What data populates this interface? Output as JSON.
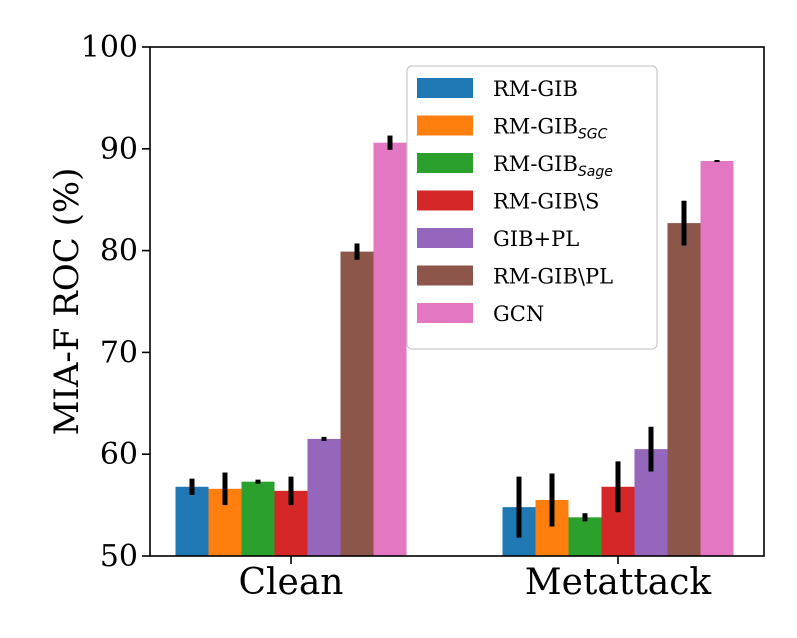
{
  "chart_data": {
    "type": "bar",
    "title": "",
    "xlabel": "",
    "ylabel": "MIA-F ROC (%)",
    "ylim": [
      50,
      100
    ],
    "yticks": [
      50,
      60,
      70,
      80,
      90,
      100
    ],
    "grid": false,
    "legend_position": "upper-right",
    "categories": [
      "Clean",
      "Metattack"
    ],
    "series": [
      {
        "name": "RM-GIB",
        "sub": "",
        "color": "#1f77b4",
        "values": [
          56.8,
          54.8
        ],
        "errors": [
          0.8,
          3.0
        ]
      },
      {
        "name": "RM-GIB",
        "sub": "SGC",
        "color": "#ff7f0e",
        "values": [
          56.6,
          55.5
        ],
        "errors": [
          1.6,
          2.6
        ]
      },
      {
        "name": "RM-GIB",
        "sub": "Sage",
        "color": "#2ca02c",
        "values": [
          57.3,
          53.8
        ],
        "errors": [
          0.2,
          0.4
        ]
      },
      {
        "name": "RM-GIB\\S",
        "sub": "",
        "color": "#d62728",
        "values": [
          56.4,
          56.8
        ],
        "errors": [
          1.4,
          2.5
        ]
      },
      {
        "name": "GIB+PL",
        "sub": "",
        "color": "#9467bd",
        "values": [
          61.5,
          60.5
        ],
        "errors": [
          0.2,
          2.2
        ]
      },
      {
        "name": "RM-GIB\\PL",
        "sub": "",
        "color": "#8c564b",
        "values": [
          79.9,
          82.7
        ],
        "errors": [
          0.8,
          2.2
        ]
      },
      {
        "name": "GCN",
        "sub": "",
        "color": "#e377c2",
        "values": [
          90.6,
          88.8
        ],
        "errors": [
          0.7,
          0.1
        ]
      }
    ]
  }
}
